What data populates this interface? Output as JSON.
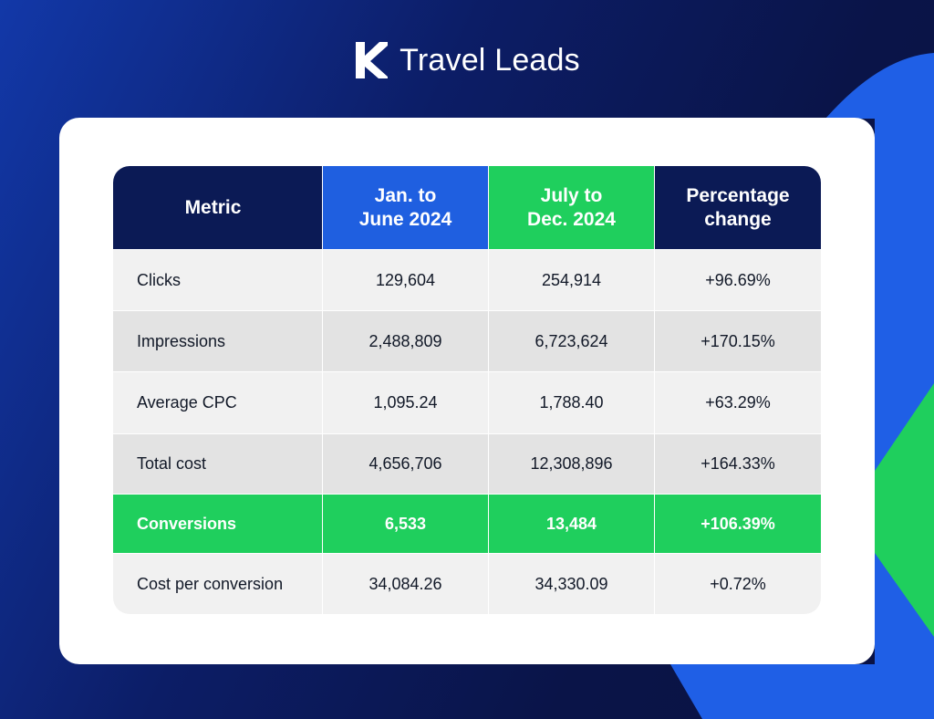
{
  "brand": {
    "name": "Travel Leads"
  },
  "colors": {
    "navy": "#0b1a55",
    "blue": "#1f5fe0",
    "green": "#1fcf5d",
    "row_light": "#f1f1f1",
    "row_dark": "#e3e3e3"
  },
  "table": {
    "headers": {
      "metric": "Metric",
      "period1_line1": "Jan. to",
      "period1_line2": "June 2024",
      "period2_line1": "July to",
      "period2_line2": "Dec. 2024",
      "change_line1": "Percentage",
      "change_line2": "change"
    },
    "rows": [
      {
        "metric": "Clicks",
        "period1": "129,604",
        "period2": "254,914",
        "change": "+96.69%"
      },
      {
        "metric": "Impressions",
        "period1": "2,488,809",
        "period2": "6,723,624",
        "change": "+170.15%"
      },
      {
        "metric": "Average CPC",
        "period1": "1,095.24",
        "period2": "1,788.40",
        "change": "+63.29%"
      },
      {
        "metric": "Total cost",
        "period1": "4,656,706",
        "period2": "12,308,896",
        "change": "+164.33%"
      },
      {
        "metric": "Conversions",
        "period1": "6,533",
        "period2": "13,484",
        "change": "+106.39%"
      },
      {
        "metric": "Cost per conversion",
        "period1": "34,084.26",
        "period2": "34,330.09",
        "change": "+0.72%"
      }
    ]
  }
}
